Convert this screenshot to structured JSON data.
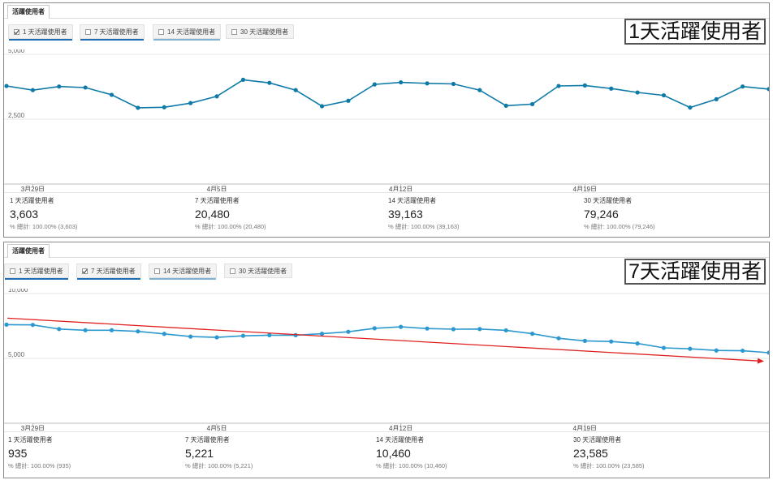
{
  "panels": [
    {
      "tab_label": "活躍使用者",
      "overlay_label": "1天活躍使用者",
      "metrics": [
        {
          "label": "1 天活躍使用者",
          "checked": true,
          "underline": "#1f6db5"
        },
        {
          "label": "7 天活躍使用者",
          "checked": false,
          "underline": "#1f6db5"
        },
        {
          "label": "14 天活躍使用者",
          "checked": false,
          "underline": "#7fb3d5"
        },
        {
          "label": "30 天活躍使用者",
          "checked": false,
          "underline": ""
        }
      ],
      "stats": [
        {
          "label": "1 天活躍使用者",
          "value": "3,603",
          "pct": "% 總計: 100.00% (3,603)"
        },
        {
          "label": "7 天活躍使用者",
          "value": "20,480",
          "pct": "% 總計: 100.00% (20,480)"
        },
        {
          "label": "14 天活躍使用者",
          "value": "39,163",
          "pct": "% 總計: 100.00% (39,163)"
        },
        {
          "label": "30 天活躍使用者",
          "value": "79,246",
          "pct": "% 總計: 100.00% (79,246)"
        }
      ]
    },
    {
      "tab_label": "活躍使用者",
      "overlay_label": "7天活躍使用者",
      "metrics": [
        {
          "label": "1 天活躍使用者",
          "checked": false,
          "underline": "#1f6db5"
        },
        {
          "label": "7 天活躍使用者",
          "checked": true,
          "underline": "#1f6db5"
        },
        {
          "label": "14 天活躍使用者",
          "checked": false,
          "underline": "#7fb3d5"
        },
        {
          "label": "30 天活躍使用者",
          "checked": false,
          "underline": ""
        }
      ],
      "stats": [
        {
          "label": "1 天活躍使用者",
          "value": "935",
          "pct": "% 總計: 100.00% (935)"
        },
        {
          "label": "7 天活躍使用者",
          "value": "5,221",
          "pct": "% 總計: 100.00% (5,221)"
        },
        {
          "label": "14 天活躍使用者",
          "value": "10,460",
          "pct": "% 總計: 100.00% (10,460)"
        },
        {
          "label": "30 天活躍使用者",
          "value": "23,585",
          "pct": "% 總計: 100.00% (23,585)"
        }
      ]
    }
  ],
  "chart_data": [
    {
      "type": "line",
      "title": "",
      "xlabel": "",
      "ylabel": "",
      "x_tick_labels": [
        "3月29日",
        "4月5日",
        "4月12日",
        "4月19日"
      ],
      "y_tick_labels": [
        "5,000",
        "2,500"
      ],
      "ylim": [
        0,
        5000
      ],
      "grid": true,
      "series": [
        {
          "color": "#0e7aa8",
          "values": [
            3780,
            3620,
            3760,
            3720,
            3440,
            2940,
            2960,
            3120,
            3380,
            4020,
            3900,
            3620,
            3000,
            3210,
            3840,
            3920,
            3880,
            3860,
            3620,
            3020,
            3080,
            3780,
            3800,
            3680,
            3530,
            3420,
            2950,
            3270,
            3760,
            3660
          ]
        }
      ]
    },
    {
      "type": "line",
      "title": "",
      "xlabel": "",
      "ylabel": "",
      "x_tick_labels": [
        "3月29日",
        "4月5日",
        "4月12日",
        "4月19日"
      ],
      "y_tick_labels": [
        "10,000",
        "5,000"
      ],
      "ylim": [
        0,
        10000
      ],
      "grid": true,
      "series": [
        {
          "color": "#2b98cf",
          "values": [
            7600,
            7580,
            7260,
            7170,
            7170,
            7080,
            6890,
            6680,
            6620,
            6740,
            6790,
            6790,
            6900,
            7050,
            7320,
            7430,
            7300,
            7250,
            7260,
            7160,
            6900,
            6550,
            6350,
            6300,
            6150,
            5810,
            5740,
            5610,
            5590,
            5440
          ]
        }
      ],
      "trendline": {
        "color": "#e02020",
        "start": 8100,
        "end": 4780,
        "arrow": true
      }
    }
  ]
}
